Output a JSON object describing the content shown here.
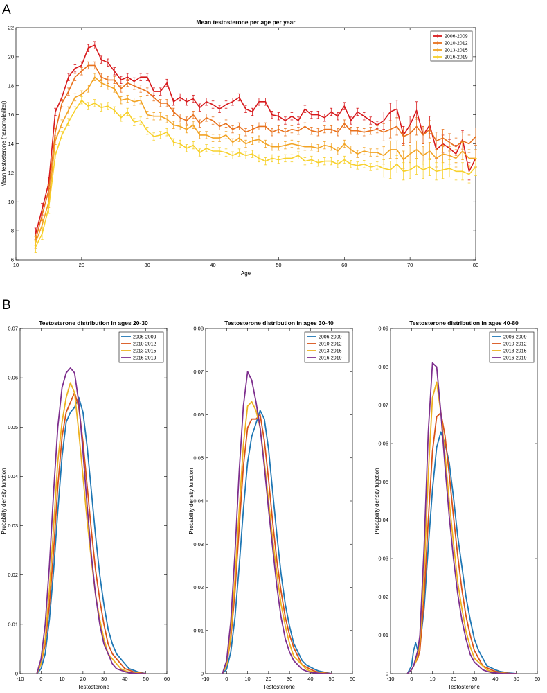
{
  "panel_labels": [
    "A",
    "B"
  ],
  "colors": {
    "s2006": "#d7191c",
    "s2010": "#e8711c",
    "s2013": "#f2a323",
    "s2016": "#f7d02a",
    "d2006": "#1f77b4",
    "d2010": "#d95319",
    "d2013": "#edb120",
    "d2016": "#7e2f8e"
  },
  "chart_data": [
    {
      "type": "line",
      "title": "Mean testosterone per age per year",
      "xlabel": "Age",
      "ylabel": "Mean testosterone (nanomole/liter)",
      "xlim": [
        10,
        80
      ],
      "ylim": [
        6,
        22
      ],
      "xticks": [
        10,
        20,
        30,
        40,
        50,
        60,
        70,
        80
      ],
      "yticks": [
        6,
        8,
        10,
        12,
        14,
        16,
        18,
        20,
        22
      ],
      "legend_position": "top-right",
      "error_bars": true,
      "x": [
        13,
        14,
        15,
        16,
        17,
        18,
        19,
        20,
        21,
        22,
        23,
        24,
        25,
        26,
        27,
        28,
        29,
        30,
        31,
        32,
        33,
        34,
        35,
        36,
        37,
        38,
        39,
        40,
        41,
        42,
        43,
        44,
        45,
        46,
        47,
        48,
        49,
        50,
        51,
        52,
        53,
        54,
        55,
        56,
        57,
        58,
        59,
        60,
        61,
        62,
        63,
        64,
        65,
        66,
        67,
        68,
        69,
        70,
        71,
        72,
        73,
        74,
        75,
        76,
        77,
        78,
        79,
        80
      ],
      "series": [
        {
          "name": "2006-2009",
          "color_key": "s2006",
          "values": [
            7.8,
            9.5,
            11.3,
            16.2,
            17.2,
            18.6,
            19.2,
            19.4,
            20.6,
            20.8,
            19.8,
            19.6,
            19.0,
            18.4,
            18.6,
            18.3,
            18.6,
            18.6,
            17.6,
            17.6,
            18.2,
            16.9,
            17.2,
            16.9,
            17.1,
            16.5,
            16.9,
            16.7,
            16.4,
            16.7,
            16.9,
            17.2,
            16.4,
            16.2,
            16.9,
            16.9,
            16.0,
            15.9,
            15.6,
            15.9,
            15.6,
            16.4,
            16.0,
            16.0,
            15.8,
            16.2,
            15.9,
            16.6,
            15.6,
            16.2,
            15.9,
            15.6,
            15.3,
            15.6,
            16.2,
            16.4,
            14.6,
            15.3,
            16.3,
            14.6,
            15.3,
            13.6,
            14.0,
            13.7,
            13.3,
            14.3,
            12.1,
            13.0
          ]
        },
        {
          "name": "2010-2012",
          "color_key": "s2010",
          "values": [
            7.4,
            9.1,
            10.8,
            14.8,
            16.8,
            17.6,
            18.6,
            19.0,
            19.4,
            19.4,
            18.6,
            18.4,
            18.4,
            17.8,
            18.2,
            18.0,
            17.8,
            17.6,
            17.2,
            16.8,
            16.8,
            16.2,
            15.8,
            15.6,
            16.0,
            15.4,
            15.8,
            15.6,
            15.2,
            15.4,
            15.0,
            15.2,
            14.8,
            15.0,
            15.2,
            15.2,
            14.8,
            15.0,
            14.8,
            15.0,
            14.9,
            15.2,
            14.9,
            14.8,
            15.0,
            15.0,
            14.8,
            15.4,
            14.9,
            14.9,
            14.8,
            14.9,
            15.0,
            14.8,
            15.0,
            15.2,
            14.5,
            14.7,
            15.2,
            14.6,
            15.0,
            14.2,
            14.4,
            14.1,
            13.8,
            14.2,
            14.0,
            14.5
          ]
        },
        {
          "name": "2013-2015",
          "color_key": "s2013",
          "values": [
            7.2,
            8.4,
            10.0,
            14.2,
            15.4,
            16.3,
            17.2,
            17.4,
            17.8,
            18.6,
            18.2,
            18.0,
            17.8,
            17.0,
            17.1,
            16.9,
            17.0,
            16.0,
            15.9,
            15.9,
            15.7,
            15.3,
            15.2,
            15.0,
            15.3,
            14.6,
            14.6,
            14.4,
            14.4,
            14.6,
            14.1,
            14.4,
            14.0,
            14.2,
            14.3,
            14.0,
            13.8,
            13.8,
            13.9,
            14.0,
            13.9,
            13.8,
            13.8,
            13.7,
            13.9,
            13.8,
            13.5,
            14.0,
            13.6,
            13.3,
            13.5,
            13.4,
            13.4,
            13.2,
            13.6,
            13.6,
            12.9,
            13.3,
            13.6,
            13.2,
            13.5,
            13.0,
            13.3,
            13.2,
            13.0,
            13.5,
            13.0,
            13.0
          ]
        },
        {
          "name": "2016-2019",
          "color_key": "s2016",
          "values": [
            6.9,
            7.8,
            9.6,
            13.2,
            14.6,
            15.5,
            16.3,
            17.0,
            16.6,
            16.8,
            16.5,
            16.6,
            16.3,
            15.8,
            16.2,
            15.5,
            15.6,
            14.9,
            14.5,
            14.6,
            14.8,
            14.1,
            14.0,
            13.7,
            13.9,
            13.4,
            13.7,
            13.5,
            13.5,
            13.4,
            13.2,
            13.4,
            13.2,
            13.3,
            13.0,
            12.8,
            13.0,
            12.9,
            13.0,
            13.0,
            13.2,
            12.8,
            12.9,
            12.7,
            12.8,
            12.8,
            12.6,
            12.9,
            12.6,
            12.5,
            12.6,
            12.4,
            12.5,
            12.3,
            12.2,
            12.6,
            12.1,
            12.2,
            12.5,
            12.2,
            12.4,
            12.1,
            12.2,
            12.3,
            12.1,
            12.1,
            11.9,
            12.4
          ]
        }
      ]
    },
    {
      "type": "line",
      "title": "Testosterone distribution in ages 20-30",
      "xlabel": "Testosterone",
      "ylabel": "Probability density function",
      "xlim": [
        -10,
        60
      ],
      "ylim": [
        0,
        0.07
      ],
      "xticks": [
        -10,
        0,
        10,
        20,
        30,
        40,
        50,
        60
      ],
      "yticks": [
        0,
        0.01,
        0.02,
        0.03,
        0.04,
        0.05,
        0.06,
        0.07
      ],
      "legend_position": "top-right",
      "x": [
        -2,
        0,
        2,
        4,
        6,
        8,
        10,
        12,
        14,
        16,
        18,
        20,
        22,
        24,
        26,
        28,
        30,
        32,
        34,
        36,
        38,
        40,
        42,
        44,
        46,
        48,
        50
      ],
      "series": [
        {
          "name": "2006-2009",
          "color_key": "d2006",
          "values": [
            0.0,
            0.001,
            0.004,
            0.011,
            0.021,
            0.033,
            0.044,
            0.051,
            0.053,
            0.054,
            0.056,
            0.053,
            0.046,
            0.037,
            0.028,
            0.02,
            0.014,
            0.009,
            0.006,
            0.004,
            0.003,
            0.002,
            0.001,
            0.0007,
            0.0004,
            0.0002,
            0.0
          ]
        },
        {
          "name": "2010-2012",
          "color_key": "d2010",
          "values": [
            0.0,
            0.002,
            0.006,
            0.014,
            0.025,
            0.038,
            0.048,
            0.053,
            0.055,
            0.057,
            0.054,
            0.047,
            0.038,
            0.029,
            0.021,
            0.015,
            0.01,
            0.006,
            0.004,
            0.003,
            0.002,
            0.001,
            0.0007,
            0.0004,
            0.0002,
            0.0001,
            0.0
          ]
        },
        {
          "name": "2013-2015",
          "color_key": "d2013",
          "values": [
            0.0,
            0.002,
            0.007,
            0.017,
            0.03,
            0.043,
            0.051,
            0.056,
            0.059,
            0.057,
            0.049,
            0.04,
            0.031,
            0.023,
            0.016,
            0.011,
            0.007,
            0.004,
            0.003,
            0.002,
            0.001,
            0.0006,
            0.0003,
            0.0002,
            0.0001,
            0.0,
            0.0
          ]
        },
        {
          "name": "2016-2019",
          "color_key": "d2016",
          "values": [
            0.0,
            0.003,
            0.01,
            0.022,
            0.037,
            0.05,
            0.058,
            0.061,
            0.062,
            0.061,
            0.055,
            0.045,
            0.034,
            0.024,
            0.016,
            0.01,
            0.006,
            0.004,
            0.002,
            0.001,
            0.0007,
            0.0004,
            0.0002,
            0.0001,
            0.0,
            0.0,
            0.0
          ]
        }
      ]
    },
    {
      "type": "line",
      "title": "Testosterone distribution in ages 30-40",
      "xlabel": "Testosterone",
      "ylabel": "Probability density function",
      "xlim": [
        -10,
        60
      ],
      "ylim": [
        0,
        0.08
      ],
      "xticks": [
        -10,
        0,
        10,
        20,
        30,
        40,
        50,
        60
      ],
      "yticks": [
        0,
        0.01,
        0.02,
        0.03,
        0.04,
        0.05,
        0.06,
        0.07,
        0.08
      ],
      "legend_position": "top-right",
      "x": [
        -2,
        0,
        2,
        4,
        6,
        8,
        10,
        12,
        14,
        16,
        18,
        20,
        22,
        24,
        26,
        28,
        30,
        32,
        34,
        36,
        38,
        40,
        42,
        44,
        46,
        48,
        50
      ],
      "series": [
        {
          "name": "2006-2009",
          "color_key": "d2006",
          "values": [
            0.0,
            0.001,
            0.005,
            0.013,
            0.025,
            0.038,
            0.049,
            0.055,
            0.058,
            0.061,
            0.059,
            0.052,
            0.042,
            0.032,
            0.023,
            0.016,
            0.011,
            0.007,
            0.005,
            0.003,
            0.002,
            0.0015,
            0.001,
            0.0006,
            0.0004,
            0.0002,
            0.0
          ]
        },
        {
          "name": "2010-2012",
          "color_key": "d2010",
          "values": [
            0.0,
            0.002,
            0.008,
            0.019,
            0.034,
            0.048,
            0.057,
            0.059,
            0.059,
            0.06,
            0.054,
            0.045,
            0.035,
            0.026,
            0.019,
            0.013,
            0.009,
            0.006,
            0.004,
            0.002,
            0.0015,
            0.001,
            0.0006,
            0.0003,
            0.0002,
            0.0001,
            0.0
          ]
        },
        {
          "name": "2013-2015",
          "color_key": "d2013",
          "values": [
            0.0,
            0.002,
            0.009,
            0.022,
            0.038,
            0.053,
            0.062,
            0.063,
            0.061,
            0.057,
            0.049,
            0.04,
            0.031,
            0.023,
            0.016,
            0.011,
            0.007,
            0.004,
            0.003,
            0.002,
            0.001,
            0.0006,
            0.0003,
            0.0002,
            0.0001,
            0.0,
            0.0
          ]
        },
        {
          "name": "2016-2019",
          "color_key": "d2016",
          "values": [
            0.0,
            0.003,
            0.012,
            0.028,
            0.047,
            0.062,
            0.07,
            0.068,
            0.063,
            0.057,
            0.048,
            0.038,
            0.029,
            0.02,
            0.013,
            0.008,
            0.005,
            0.003,
            0.002,
            0.001,
            0.0006,
            0.0003,
            0.0002,
            0.0001,
            0.0,
            0.0,
            0.0
          ]
        }
      ]
    },
    {
      "type": "line",
      "title": "Testosterone distribution in ages 40-80",
      "xlabel": "Testosterone",
      "ylabel": "Probability density function",
      "xlim": [
        -10,
        60
      ],
      "ylim": [
        0,
        0.09
      ],
      "xticks": [
        -10,
        0,
        10,
        20,
        30,
        40,
        50,
        60
      ],
      "yticks": [
        0,
        0.01,
        0.02,
        0.03,
        0.04,
        0.05,
        0.06,
        0.07,
        0.08,
        0.09
      ],
      "legend_position": "top-right",
      "x": [
        -2,
        0,
        1,
        2,
        3,
        4,
        6,
        8,
        10,
        12,
        14,
        16,
        18,
        20,
        22,
        24,
        26,
        28,
        30,
        32,
        34,
        36,
        38,
        40,
        42,
        44,
        46,
        48,
        50
      ],
      "series": [
        {
          "name": "2006-2009",
          "color_key": "d2006",
          "values": [
            0.0,
            0.002,
            0.006,
            0.008,
            0.006,
            0.007,
            0.017,
            0.033,
            0.048,
            0.059,
            0.063,
            0.06,
            0.055,
            0.046,
            0.036,
            0.028,
            0.02,
            0.014,
            0.009,
            0.006,
            0.004,
            0.002,
            0.0015,
            0.001,
            0.0006,
            0.0004,
            0.0002,
            0.0001,
            0.0
          ]
        },
        {
          "name": "2010-2012",
          "color_key": "d2010",
          "values": [
            0.0,
            0.001,
            0.002,
            0.003,
            0.004,
            0.006,
            0.02,
            0.04,
            0.058,
            0.067,
            0.068,
            0.062,
            0.052,
            0.041,
            0.031,
            0.022,
            0.015,
            0.01,
            0.006,
            0.004,
            0.002,
            0.0015,
            0.001,
            0.0006,
            0.0004,
            0.0002,
            0.0001,
            0.0,
            0.0
          ]
        },
        {
          "name": "2013-2015",
          "color_key": "d2013",
          "values": [
            0.0,
            0.001,
            0.002,
            0.003,
            0.005,
            0.008,
            0.026,
            0.052,
            0.072,
            0.076,
            0.068,
            0.057,
            0.045,
            0.034,
            0.024,
            0.017,
            0.011,
            0.007,
            0.004,
            0.003,
            0.002,
            0.001,
            0.0006,
            0.0003,
            0.0002,
            0.0001,
            0.0,
            0.0,
            0.0
          ]
        },
        {
          "name": "2016-2019",
          "color_key": "d2016",
          "values": [
            0.0,
            0.001,
            0.002,
            0.004,
            0.006,
            0.01,
            0.033,
            0.063,
            0.081,
            0.08,
            0.068,
            0.054,
            0.041,
            0.03,
            0.021,
            0.014,
            0.009,
            0.005,
            0.003,
            0.002,
            0.001,
            0.0006,
            0.0003,
            0.0002,
            0.0001,
            0.0,
            0.0,
            0.0,
            0.0
          ]
        }
      ]
    }
  ]
}
